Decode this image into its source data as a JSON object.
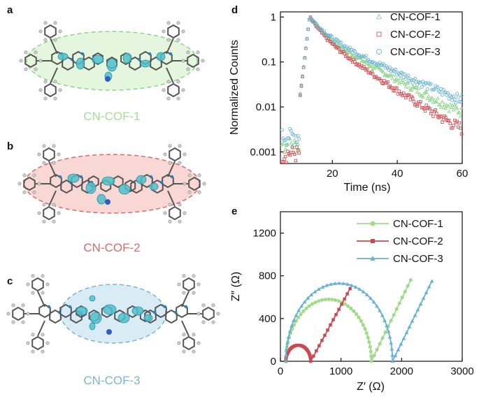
{
  "panels": {
    "a": {
      "letter": "a",
      "label": "CN-COF-1",
      "color": "#a6dd98"
    },
    "b": {
      "letter": "b",
      "label": "CN-COF-2",
      "color": "#d86b6b"
    },
    "c": {
      "letter": "c",
      "label": "CN-COF-3",
      "color": "#79b6d3"
    },
    "d": {
      "letter": "d"
    },
    "e": {
      "letter": "e"
    }
  },
  "chart_data": [
    {
      "type": "scatter",
      "panel": "d",
      "title": "",
      "xlabel": "Time (ns)",
      "ylabel": "Normalized Counts",
      "xlim": [
        4,
        60
      ],
      "ylim": [
        0.00055,
        1.3
      ],
      "yscale": "log",
      "xticks": [
        20,
        40,
        60
      ],
      "yticks": [
        0.001,
        0.01,
        0.1,
        1
      ],
      "ytick_labels": [
        "0.001",
        "0.01",
        "0.1",
        "1"
      ],
      "legend_position": "top-right",
      "series": [
        {
          "name": "CN-COF-1",
          "marker": "triangle",
          "color": "#8fd68a",
          "peak": 13,
          "decay": [
            3.2,
            11
          ],
          "floor": 0.0014
        },
        {
          "name": "CN-COF-2",
          "marker": "square",
          "color": "#d0555a",
          "peak": 13,
          "decay": [
            2.8,
            9
          ],
          "floor": 0.0009
        },
        {
          "name": "CN-COF-3",
          "marker": "circle",
          "color": "#6cb7d6",
          "peak": 13,
          "decay": [
            3.5,
            13
          ],
          "floor": 0.0022
        }
      ]
    },
    {
      "type": "line",
      "panel": "e",
      "title": "",
      "xlabel": "Z′ (Ω)",
      "ylabel": "Z″ (Ω)",
      "xlim": [
        0,
        3000
      ],
      "ylim": [
        0,
        1400
      ],
      "xticks": [
        0,
        1000,
        2000,
        3000
      ],
      "yticks": [
        0,
        400,
        800,
        1200
      ],
      "legend_position": "top-right",
      "series": [
        {
          "name": "CN-COF-1",
          "marker": "circle",
          "color": "#9fdc86",
          "arc": {
            "x0": 90,
            "x1": 1500,
            "height": 580
          },
          "tail": {
            "x": 2150,
            "y": 760
          }
        },
        {
          "name": "CN-COF-2",
          "marker": "square",
          "color": "#c94a52",
          "arc": {
            "x0": 90,
            "x1": 500,
            "height": 150
          },
          "tail": {
            "x": 1150,
            "y": 680
          }
        },
        {
          "name": "CN-COF-3",
          "marker": "triangle",
          "color": "#69b2d2",
          "arc": {
            "x0": 90,
            "x1": 1850,
            "height": 730
          },
          "tail": {
            "x": 2500,
            "y": 750
          }
        }
      ]
    }
  ]
}
